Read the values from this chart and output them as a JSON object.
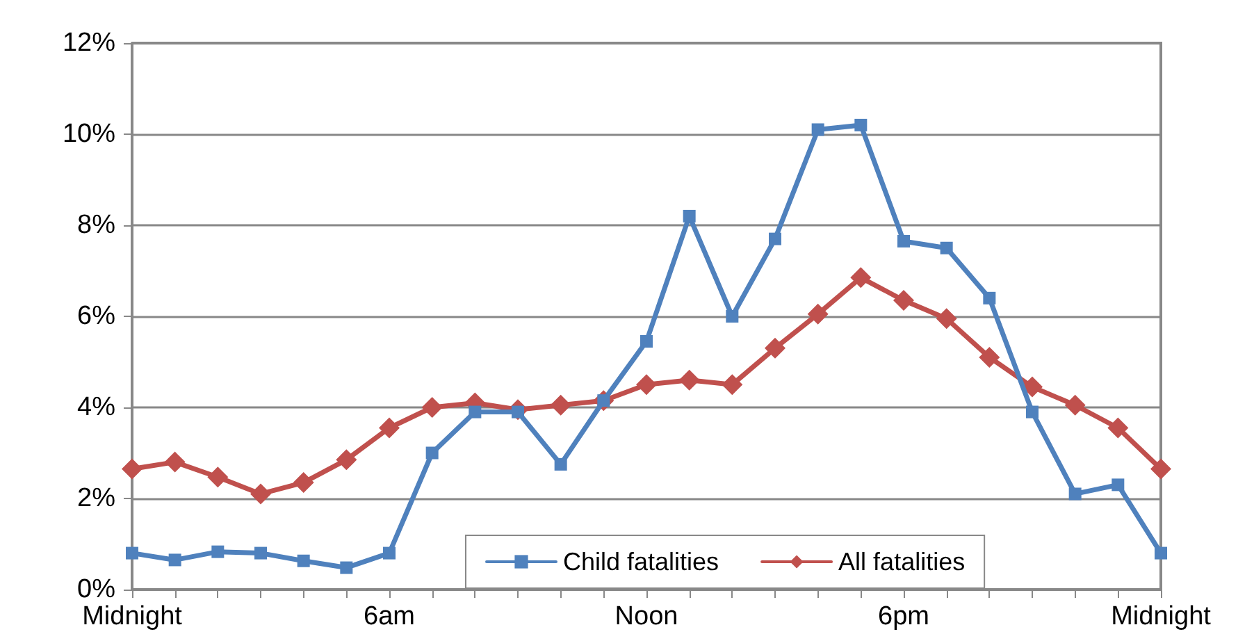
{
  "chart_data": {
    "type": "line",
    "categories": [
      "Midnight",
      null,
      null,
      null,
      null,
      null,
      "6am",
      null,
      null,
      null,
      null,
      null,
      "Noon",
      null,
      null,
      null,
      null,
      null,
      "6pm",
      null,
      null,
      null,
      null,
      null,
      "Midnight"
    ],
    "series": [
      {
        "name": "Child fatalities",
        "color": "#4f81bd",
        "marker": "square",
        "values": [
          0.8,
          0.65,
          0.83,
          0.8,
          0.63,
          0.48,
          0.8,
          3.0,
          3.9,
          3.9,
          2.75,
          4.15,
          5.45,
          8.2,
          6.0,
          7.7,
          10.1,
          10.2,
          7.65,
          7.5,
          6.4,
          3.9,
          2.1,
          2.3,
          0.8
        ]
      },
      {
        "name": "All fatalities",
        "color": "#c0504d",
        "marker": "diamond",
        "values": [
          2.65,
          2.8,
          2.47,
          2.1,
          2.35,
          2.85,
          3.55,
          4.0,
          4.1,
          3.95,
          4.05,
          4.15,
          4.5,
          4.6,
          4.5,
          5.3,
          6.05,
          6.85,
          6.35,
          5.95,
          5.1,
          4.45,
          4.05,
          3.55,
          2.65
        ]
      }
    ],
    "ylim": [
      0,
      12
    ],
    "yticks": [
      {
        "value": 0,
        "label": "0%"
      },
      {
        "value": 2,
        "label": "2%"
      },
      {
        "value": 4,
        "label": "4%"
      },
      {
        "value": 6,
        "label": "6%"
      },
      {
        "value": 8,
        "label": "8%"
      },
      {
        "value": 10,
        "label": "10%"
      },
      {
        "value": 12,
        "label": "12%"
      }
    ],
    "grid": "y",
    "legend": "bottom",
    "line_style": "solid"
  }
}
